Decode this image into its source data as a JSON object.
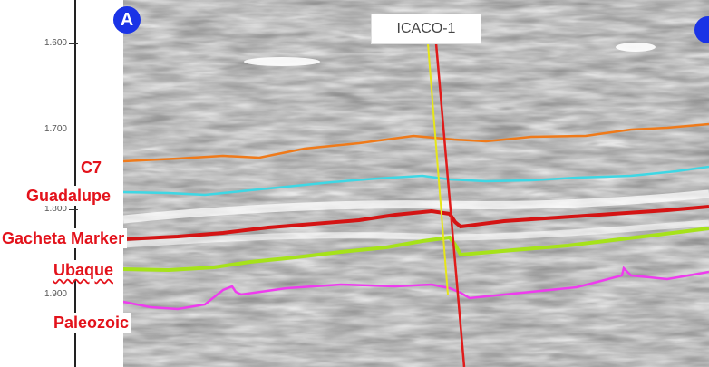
{
  "depth_axis": {
    "ticks": [
      "1.600",
      "1.700",
      "1.800",
      "1.900"
    ]
  },
  "markers": {
    "left": "A"
  },
  "well": {
    "name": "ICACO-1"
  },
  "horizons": [
    {
      "name": "C7",
      "color": "#ef7a1a"
    },
    {
      "name": "Guadalupe",
      "color": "#3fd7e4"
    },
    {
      "name": "Gacheta Marker",
      "color": "#d41414"
    },
    {
      "name": "Ubaque",
      "color": "#a6e21a"
    },
    {
      "name": "Paleozoic",
      "color": "#ee3cee"
    }
  ],
  "well_colors": {
    "trajectory": "#e6e619",
    "fault": "#e01b1b"
  }
}
